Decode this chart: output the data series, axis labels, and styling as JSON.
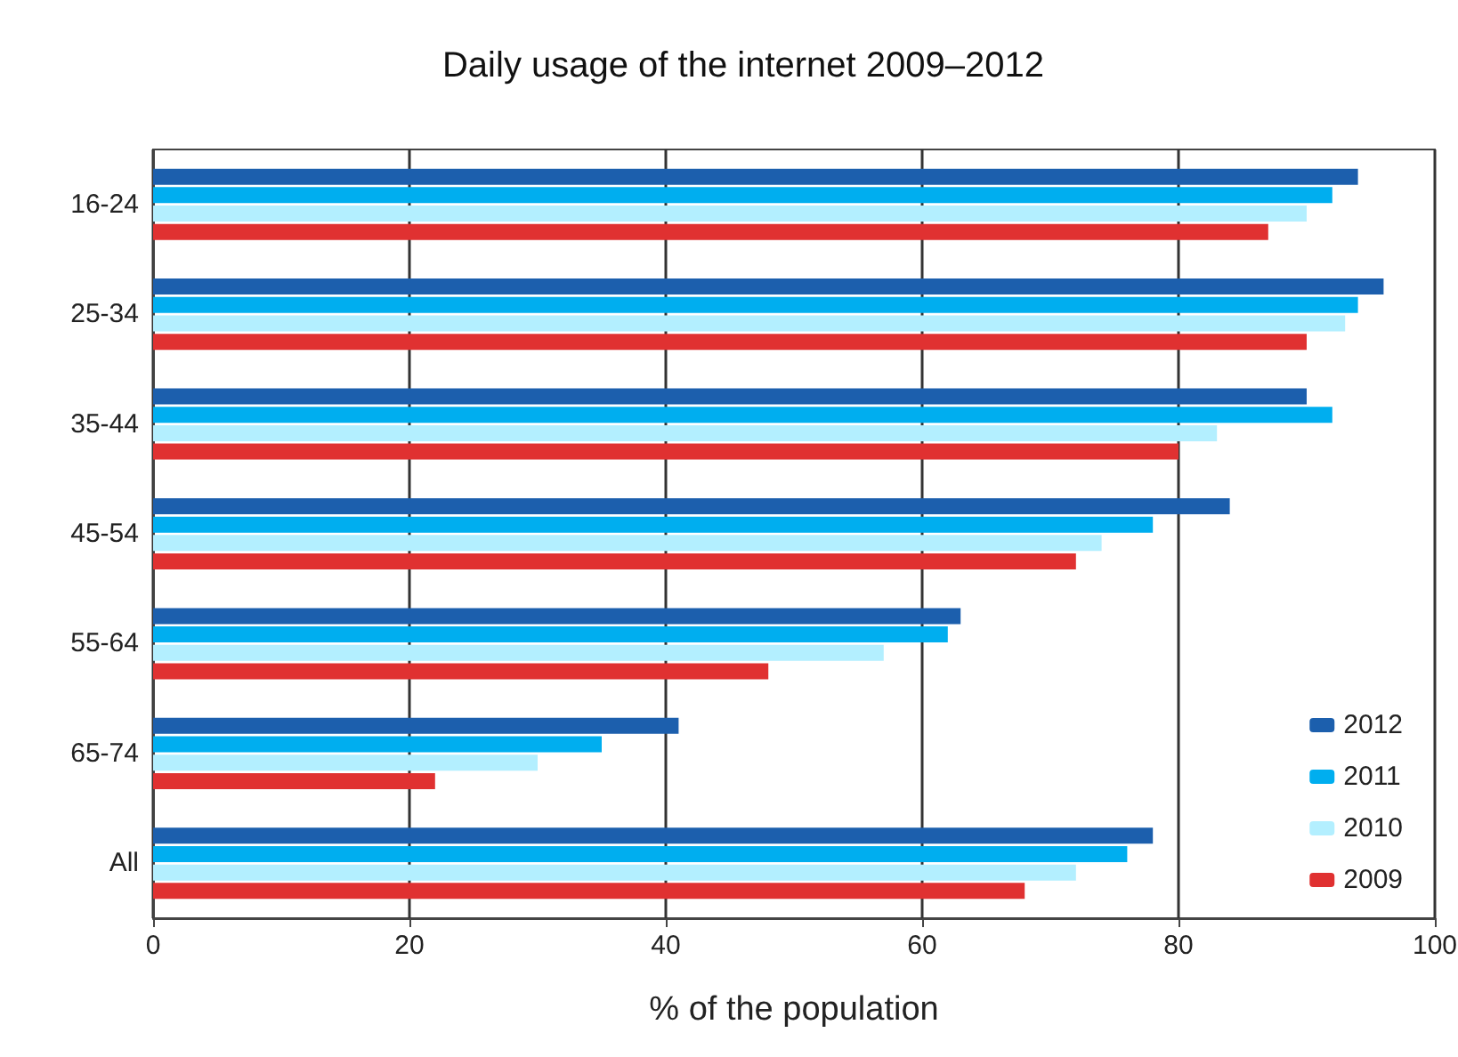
{
  "chart_data": {
    "type": "bar",
    "orientation": "horizontal",
    "title": "Daily usage of the internet 2009–2012",
    "xlabel": "% of the population",
    "categories": [
      "16-24",
      "25-34",
      "35-44",
      "45-54",
      "55-64",
      "65-74",
      "All"
    ],
    "series": [
      {
        "name": "2012",
        "color": "#1c5fad",
        "values": [
          94,
          96,
          90,
          84,
          63,
          41,
          78
        ]
      },
      {
        "name": "2011",
        "color": "#00aeef",
        "values": [
          92,
          94,
          92,
          78,
          62,
          35,
          76
        ]
      },
      {
        "name": "2010",
        "color": "#b3efff",
        "values": [
          90,
          93,
          83,
          74,
          57,
          30,
          72
        ]
      },
      {
        "name": "2009",
        "color": "#e03131",
        "values": [
          87,
          90,
          80,
          72,
          48,
          22,
          68
        ]
      }
    ],
    "xlim": [
      0,
      100
    ],
    "xticks": [
      0,
      20,
      40,
      60,
      80,
      100
    ],
    "grid": "x",
    "legend": "bottom right"
  }
}
